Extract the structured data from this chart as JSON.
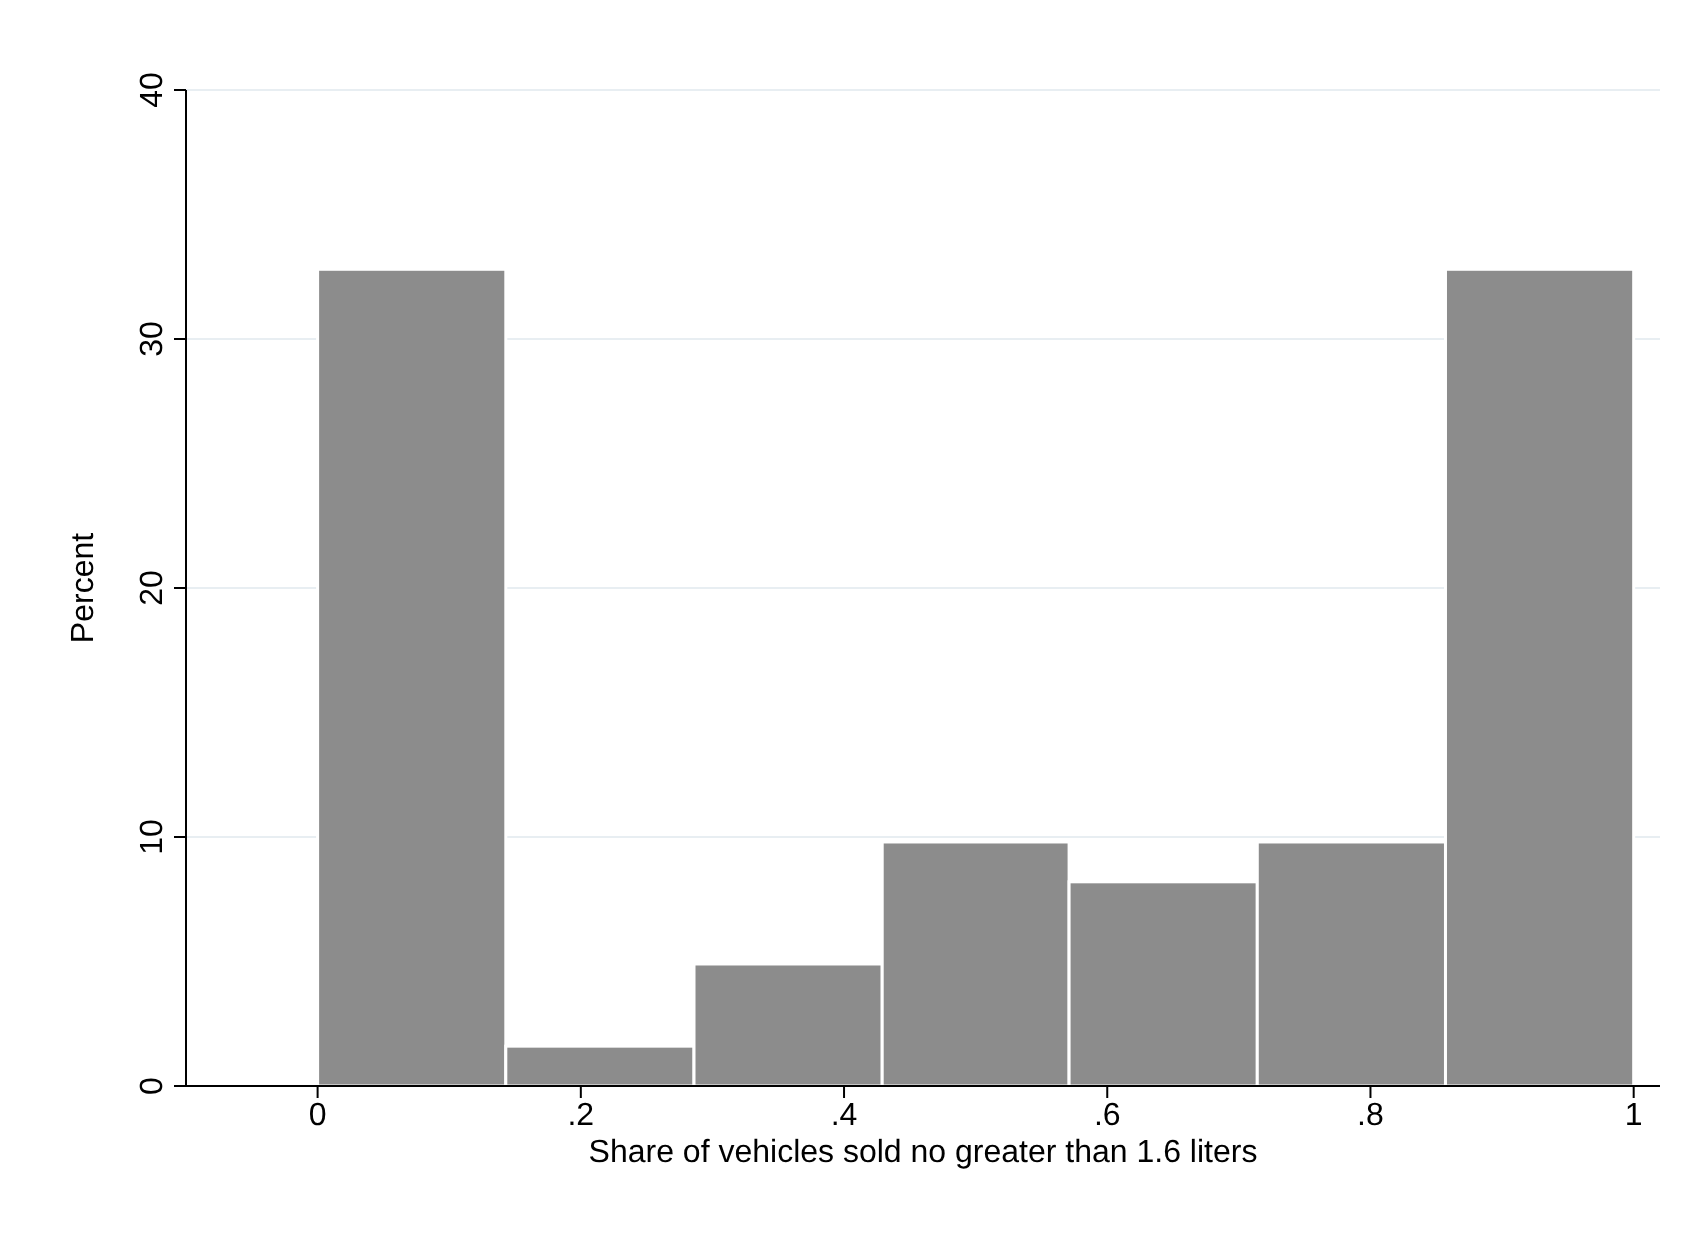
{
  "chart_data": {
    "type": "histogram",
    "xlabel": "Share of vehicles sold no greater than 1.6 liters",
    "ylabel": "Percent",
    "bins": [
      0,
      0.143,
      0.286,
      0.429,
      0.571,
      0.714,
      0.857,
      1
    ],
    "values": [
      32.8,
      1.6,
      4.9,
      9.8,
      8.2,
      9.8,
      32.8
    ],
    "color": "#8c8c8c",
    "xlim": [
      -0.1,
      1.02
    ],
    "xticks": [
      0,
      {
        "value": 0.2,
        "label": ".2"
      },
      {
        "value": 0.4,
        "label": ".4"
      },
      {
        "value": 0.6,
        "label": ".6"
      },
      {
        "value": 0.8,
        "label": ".8"
      },
      1
    ],
    "ylim": [
      0,
      40
    ],
    "yticks": [
      0,
      10,
      20,
      30,
      40
    ],
    "grid": "y"
  }
}
